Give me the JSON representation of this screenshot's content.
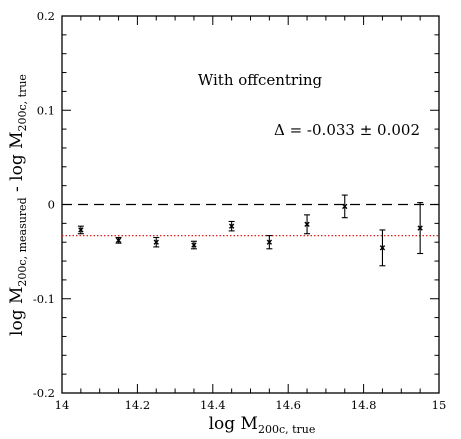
{
  "chart_data": {
    "type": "scatter",
    "x_tick_labels": [
      "14",
      "14.2",
      "14.4",
      "14.6",
      "14.8",
      "15"
    ],
    "y_tick_labels": [
      "-0.2",
      "-0.1",
      "0",
      "0.1",
      "0.2"
    ],
    "xlim": [
      14,
      15
    ],
    "ylim": [
      -0.2,
      0.2
    ],
    "xlabel": {
      "main": "log M",
      "sub": "200c, true"
    },
    "ylabel": {
      "main": "log M",
      "sub1": "200c, measured",
      "mid": " - log M",
      "sub2": "200c, true"
    },
    "annotations": {
      "title": "With offcentring",
      "delta": "Δ = -0.033 ± 0.002"
    },
    "reference_lines": [
      {
        "y": 0,
        "style": "dashed",
        "color": "#000000"
      },
      {
        "y": -0.033,
        "style": "dotted",
        "color": "#e0201b"
      }
    ],
    "series": [
      {
        "points": [
          {
            "x": 14.05,
            "y": -0.027,
            "err": 0.004
          },
          {
            "x": 14.15,
            "y": -0.038,
            "err": 0.003
          },
          {
            "x": 14.25,
            "y": -0.04,
            "err": 0.005
          },
          {
            "x": 14.35,
            "y": -0.043,
            "err": 0.004
          },
          {
            "x": 14.45,
            "y": -0.023,
            "err": 0.005
          },
          {
            "x": 14.55,
            "y": -0.04,
            "err": 0.007
          },
          {
            "x": 14.65,
            "y": -0.021,
            "err": 0.01
          },
          {
            "x": 14.75,
            "y": -0.002,
            "err": 0.012
          },
          {
            "x": 14.85,
            "y": -0.046,
            "err": 0.019
          },
          {
            "x": 14.95,
            "y": -0.025,
            "err": 0.027
          }
        ]
      }
    ]
  }
}
